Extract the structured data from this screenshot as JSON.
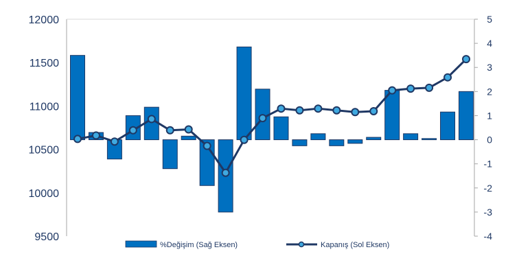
{
  "chart_data": {
    "type": "bar+line",
    "title": "",
    "xlabel": "",
    "ylabel": "",
    "y_left": {
      "min": 9500,
      "max": 12000,
      "ticks": [
        "9500",
        "10000",
        "10500",
        "11000",
        "11500",
        "12000"
      ]
    },
    "y_right": {
      "min": -4,
      "max": 5,
      "ticks": [
        "-4",
        "-3",
        "-2",
        "-1",
        "0",
        "1",
        "2",
        "3",
        "4",
        "5"
      ]
    },
    "grid": false,
    "legend_position": "bottom",
    "bar_color": "#0070c0",
    "line_color": "#1f3864",
    "marker_fill": "#3fa9e0",
    "series": [
      {
        "name": "%Değişim (Sağ Eksen)",
        "type": "bar",
        "axis": "right",
        "values": [
          3.5,
          0.3,
          -0.8,
          1.0,
          1.35,
          -1.2,
          0.15,
          -1.9,
          -3.0,
          3.85,
          2.1,
          0.95,
          -0.25,
          0.25,
          -0.25,
          -0.15,
          0.1,
          2.05,
          0.25,
          0.05,
          1.15,
          2.0
        ]
      },
      {
        "name": "Kapanış (Sol Eksen)",
        "type": "line",
        "axis": "left",
        "values": [
          10620,
          10660,
          10590,
          10720,
          10850,
          10720,
          10730,
          10540,
          10230,
          10610,
          10860,
          10970,
          10950,
          10970,
          10950,
          10930,
          10940,
          11180,
          11200,
          11210,
          11330,
          11540
        ]
      }
    ]
  }
}
